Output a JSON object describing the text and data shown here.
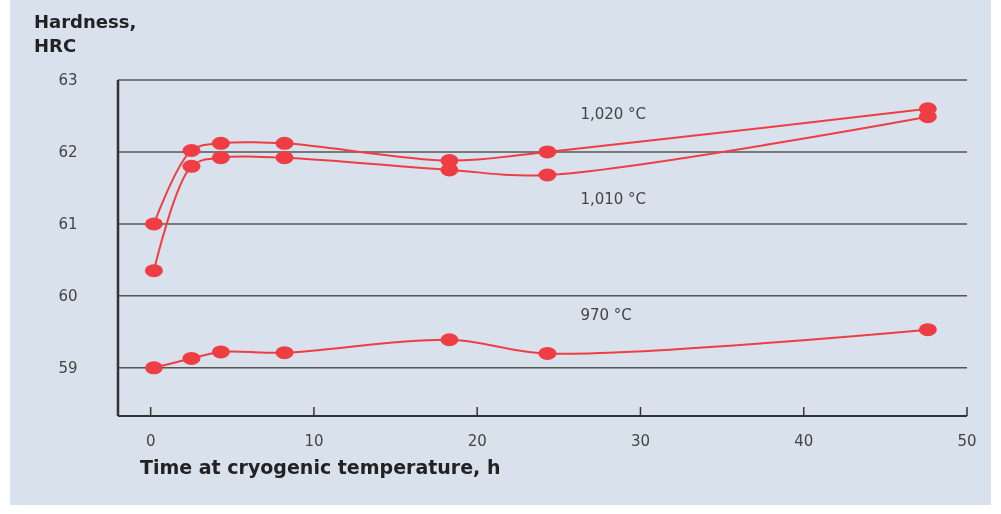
{
  "chart_data": {
    "type": "line",
    "ylabel": "Hardness,\nHRC",
    "xlabel": "Time at cryogenic temperature, h",
    "xlim": [
      -2,
      50
    ],
    "xticks": [
      0,
      10,
      20,
      30,
      40,
      50
    ],
    "ylim": [
      58.33,
      63
    ],
    "yticks": [
      59,
      60,
      61,
      62,
      63
    ],
    "grid": "y",
    "marker": "circle",
    "line_style": "solid",
    "series": [
      {
        "name": "1,020 °C",
        "color": "#ee3e44",
        "x": [
          0.2,
          2.5,
          4.3,
          8.2,
          18.3,
          24.3,
          47.6
        ],
        "values": [
          61.0,
          62.02,
          62.12,
          62.12,
          61.88,
          62.0,
          62.6
        ]
      },
      {
        "name": "1,010 °C",
        "color": "#ee3e44",
        "x": [
          0.2,
          2.5,
          4.3,
          8.2,
          18.3,
          24.3,
          47.6
        ],
        "values": [
          60.35,
          61.8,
          61.92,
          61.92,
          61.75,
          61.68,
          62.49
        ]
      },
      {
        "name": "970 °C",
        "color": "#ee3e44",
        "x": [
          0.2,
          2.5,
          4.3,
          8.2,
          18.3,
          24.3,
          47.6
        ],
        "values": [
          59.0,
          59.13,
          59.22,
          59.21,
          59.39,
          59.2,
          59.53
        ]
      }
    ]
  }
}
